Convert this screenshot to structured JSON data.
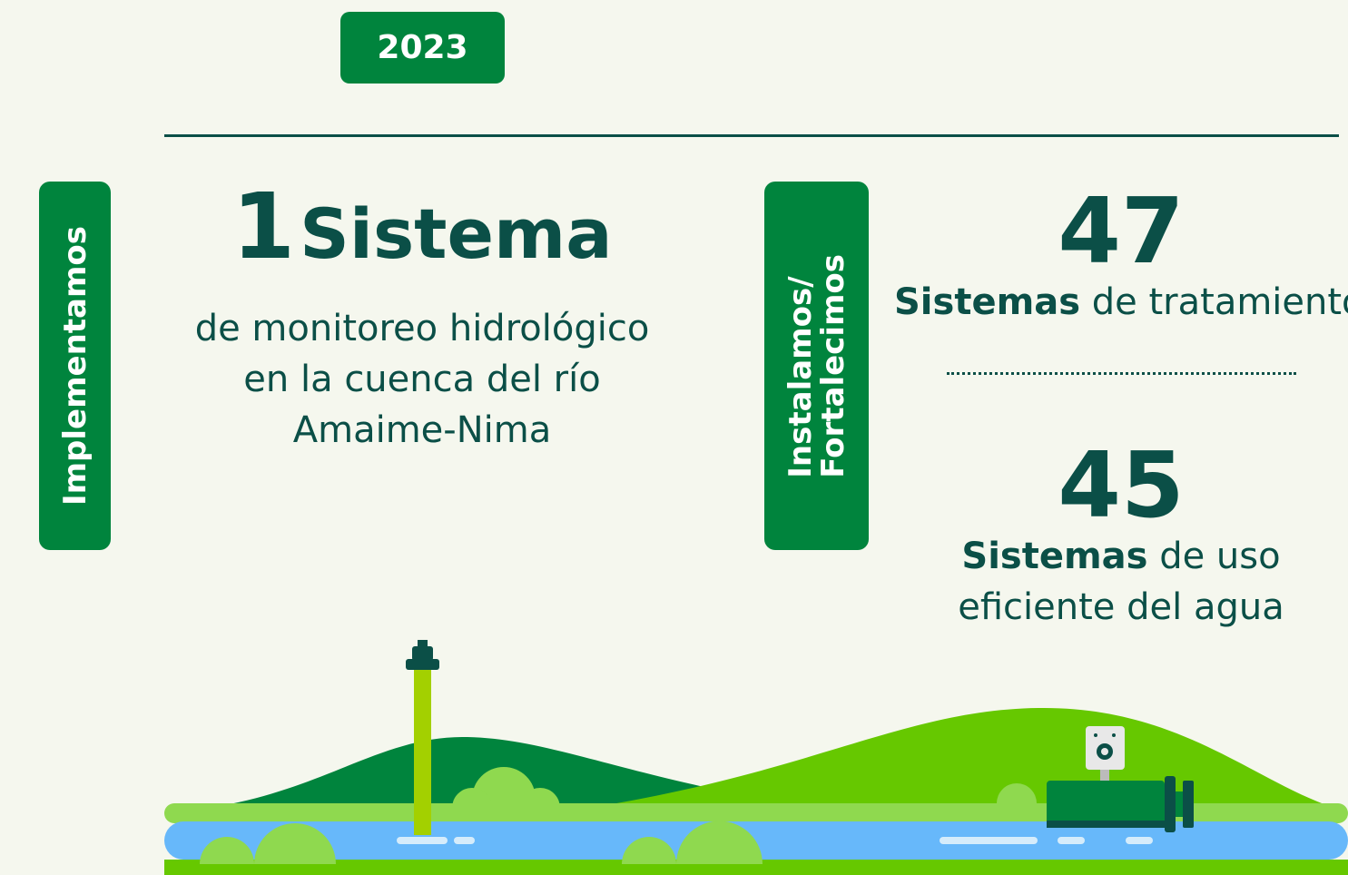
{
  "year": "2023",
  "left": {
    "label": "Implementamos",
    "number": "1",
    "unit": "Sistema",
    "lines": [
      "de monitoreo hidrológico",
      "en la cuenca del río",
      "Amaime-Nima"
    ]
  },
  "right": {
    "label_lines": [
      "Instalamos/",
      "Fortalecimos"
    ],
    "stats": [
      {
        "number": "47",
        "bold": "Sistemas",
        "lines": [
          "de tratamiento"
        ]
      },
      {
        "number": "45",
        "bold": "Sistemas",
        "lines": [
          "de uso",
          "eficiente del agua"
        ]
      }
    ]
  }
}
